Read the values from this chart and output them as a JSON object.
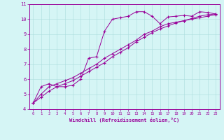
{
  "xlabel": "Windchill (Refroidissement éolien,°C)",
  "ylabel": "",
  "bg_color": "#d5f5f5",
  "line_color": "#990099",
  "xlim": [
    -0.5,
    23.5
  ],
  "ylim": [
    4,
    11
  ],
  "xticks": [
    0,
    1,
    2,
    3,
    4,
    5,
    6,
    7,
    8,
    9,
    10,
    11,
    12,
    13,
    14,
    15,
    16,
    17,
    18,
    19,
    20,
    21,
    22,
    23
  ],
  "yticks": [
    4,
    5,
    6,
    7,
    8,
    9,
    10,
    11
  ],
  "line1_x": [
    0,
    1,
    2,
    3,
    4,
    5,
    6,
    7,
    8,
    9,
    10,
    11,
    12,
    13,
    14,
    15,
    16,
    17,
    18,
    19,
    20,
    21,
    22,
    23
  ],
  "line1_y": [
    4.4,
    5.5,
    5.7,
    5.5,
    5.5,
    5.6,
    6.0,
    7.4,
    7.5,
    9.2,
    10.0,
    10.1,
    10.2,
    10.5,
    10.5,
    10.2,
    9.7,
    10.15,
    10.2,
    10.25,
    10.2,
    10.5,
    10.45,
    10.35
  ],
  "line2_x": [
    0,
    1,
    2,
    3,
    4,
    5,
    6,
    7,
    8,
    9,
    10,
    11,
    12,
    13,
    14,
    15,
    16,
    17,
    18,
    19,
    20,
    21,
    22,
    23
  ],
  "line2_y": [
    4.4,
    5.0,
    5.5,
    5.7,
    5.9,
    6.1,
    6.4,
    6.7,
    7.0,
    7.4,
    7.7,
    8.0,
    8.3,
    8.6,
    9.0,
    9.2,
    9.5,
    9.7,
    9.8,
    9.9,
    10.0,
    10.1,
    10.2,
    10.3
  ],
  "line3_x": [
    0,
    1,
    2,
    3,
    4,
    5,
    6,
    7,
    8,
    9,
    10,
    11,
    12,
    13,
    14,
    15,
    16,
    17,
    18,
    19,
    20,
    21,
    22,
    23
  ],
  "line3_y": [
    4.4,
    4.8,
    5.2,
    5.5,
    5.7,
    5.9,
    6.2,
    6.5,
    6.8,
    7.1,
    7.5,
    7.8,
    8.1,
    8.5,
    8.8,
    9.1,
    9.35,
    9.55,
    9.75,
    9.9,
    10.05,
    10.2,
    10.3,
    10.35
  ]
}
